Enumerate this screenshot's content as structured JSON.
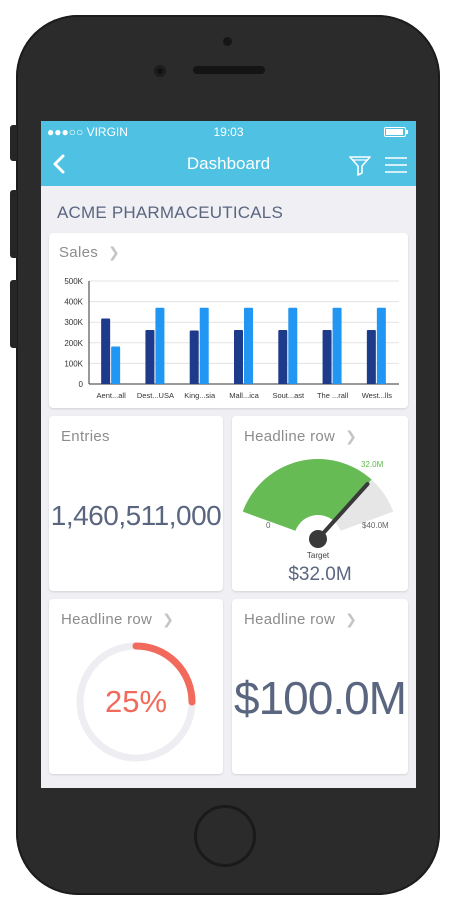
{
  "status": {
    "carrier": "●●●○○ VIRGIN",
    "time": "19:03"
  },
  "nav": {
    "title": "Dashboard"
  },
  "company": "ACME PHARMACEUTICALS",
  "sales": {
    "title": "Sales",
    "chart_data": {
      "type": "bar",
      "categories": [
        "Aent...all",
        "Dest...USA",
        "King...sia",
        "Mall...ica",
        "Sout...ast",
        "The ...rall",
        "West...lls"
      ],
      "series": [
        {
          "values": [
            318000,
            262000,
            260000,
            262000,
            262000,
            262000,
            262000
          ]
        },
        {
          "values": [
            182000,
            370000,
            370000,
            370000,
            370000,
            370000,
            370000
          ]
        }
      ],
      "y_ticks": [
        "0",
        "100K",
        "200K",
        "300K",
        "400K",
        "500K"
      ],
      "ylim": [
        0,
        500000
      ],
      "grid": true,
      "colors": [
        "#1e3a8a",
        "#2196f3"
      ]
    }
  },
  "entries": {
    "title": "Entries",
    "value": "1,460,511,000"
  },
  "gauge_card": {
    "title": "Headline row",
    "chart_data": {
      "type": "gauge",
      "min_label": "0",
      "max_label": "$40.0M",
      "range_label": "32.0M",
      "value": 32.0,
      "max": 40.0,
      "target_label": "Target",
      "value_label": "$32.0M",
      "fill_color": "#66bb55",
      "track_color": "#e6e6e6"
    }
  },
  "ring_card": {
    "title": "Headline row",
    "percent_label": "25%",
    "percent": 0.25,
    "color": "#f26a5b"
  },
  "money_card": {
    "title": "Headline row",
    "value": "$100.0M"
  },
  "colors": {
    "nav": "#4fc1e3",
    "text": "#5a6680"
  }
}
